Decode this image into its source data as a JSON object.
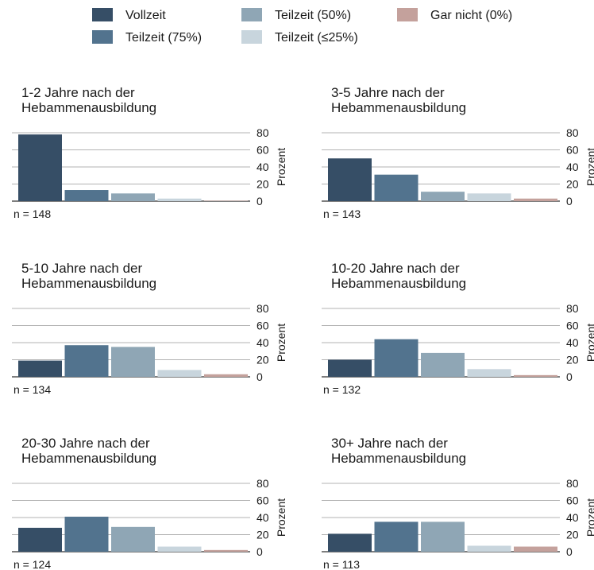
{
  "chart_data": {
    "type": "bar",
    "ylabel": "Prozent",
    "ylim": [
      0,
      80
    ],
    "yticks": [
      0,
      20,
      40,
      60,
      80
    ],
    "grid": true,
    "legend_position": "top",
    "series": [
      {
        "name": "Vollzeit",
        "color": "#364e66"
      },
      {
        "name": "Teilzeit (75%)",
        "color": "#52738e"
      },
      {
        "name": "Teilzeit (50%)",
        "color": "#8fa6b5"
      },
      {
        "name": "Teilzeit (≤25%)",
        "color": "#c8d5dd"
      },
      {
        "name": "Gar nicht (0%)",
        "color": "#c4a19c"
      }
    ],
    "panels": [
      {
        "title": [
          "1-2 Jahre nach der",
          "Hebammenausbildung"
        ],
        "n": "n = 148",
        "values": [
          78,
          13,
          9,
          3,
          0.5
        ]
      },
      {
        "title": [
          "3-5 Jahre nach der",
          "Hebammenausbildung"
        ],
        "n": "n = 143",
        "values": [
          50,
          31,
          11,
          9,
          3
        ]
      },
      {
        "title": [
          "5-10 Jahre nach der",
          "Hebammenausbildung"
        ],
        "n": "n = 134",
        "values": [
          19,
          37,
          35,
          8,
          3
        ]
      },
      {
        "title": [
          "10-20 Jahre nach der",
          "Hebammenausbildung"
        ],
        "n": "n = 132",
        "values": [
          20,
          44,
          28,
          9,
          2
        ]
      },
      {
        "title": [
          "20-30 Jahre nach der",
          "Hebammenausbildung"
        ],
        "n": "n = 124",
        "values": [
          28,
          41,
          29,
          6,
          2
        ]
      },
      {
        "title": [
          "30+ Jahre nach der",
          "Hebammenausbildung"
        ],
        "n": "n = 113",
        "values": [
          21,
          35,
          35,
          7,
          6
        ]
      }
    ]
  }
}
